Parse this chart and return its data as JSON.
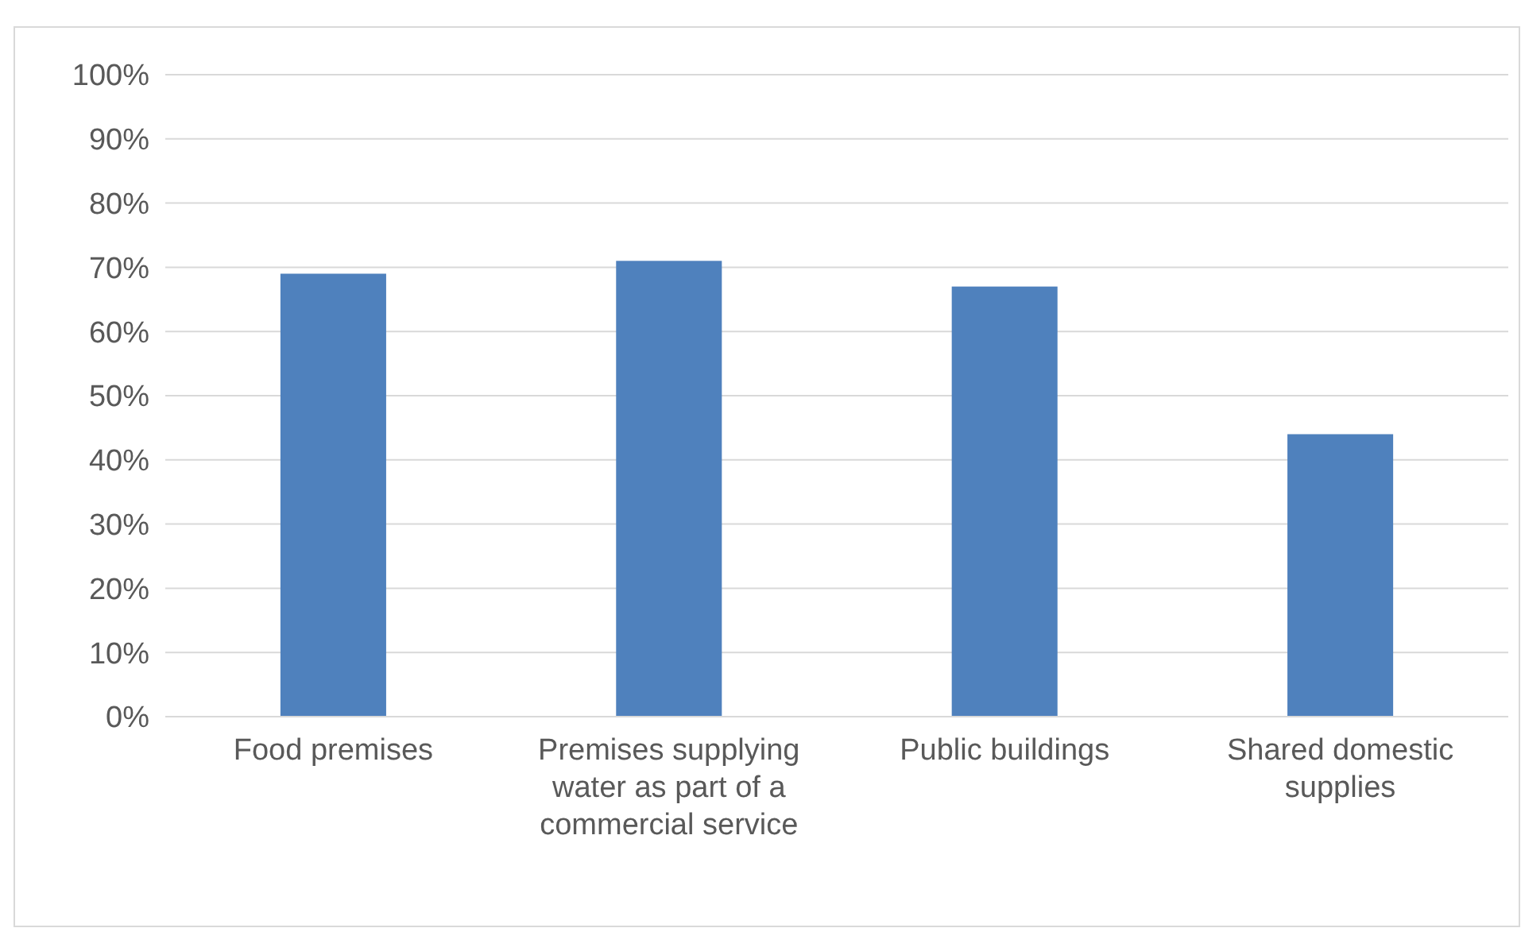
{
  "chart_data": {
    "type": "bar",
    "categories": [
      "Food premises",
      "Premises supplying water as part of a commercial service",
      "Public buildings",
      "Shared domestic supplies"
    ],
    "values": [
      69,
      71,
      67,
      44
    ],
    "color": "#4f81bd",
    "ylim": [
      0,
      100
    ],
    "yticks": [
      {
        "value": 0,
        "label": "0%"
      },
      {
        "value": 10,
        "label": "10%"
      },
      {
        "value": 20,
        "label": "20%"
      },
      {
        "value": 30,
        "label": "30%"
      },
      {
        "value": 40,
        "label": "40%"
      },
      {
        "value": 50,
        "label": "50%"
      },
      {
        "value": 60,
        "label": "60%"
      },
      {
        "value": 70,
        "label": "70%"
      },
      {
        "value": 80,
        "label": "80%"
      },
      {
        "value": 90,
        "label": "90%"
      },
      {
        "value": 100,
        "label": "100%"
      }
    ],
    "grid": "y"
  }
}
